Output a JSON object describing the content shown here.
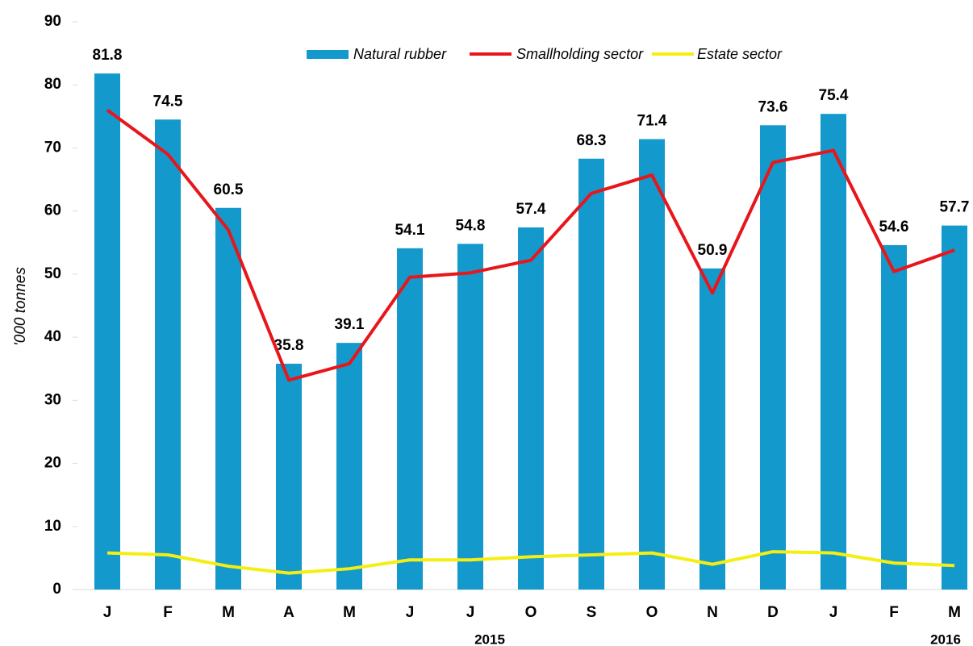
{
  "chart_data": {
    "type": "bar",
    "y_label": "'000 tonnes",
    "categories": [
      "J",
      "F",
      "M",
      "A",
      "M",
      "J",
      "J",
      "O",
      "S",
      "O",
      "N",
      "D",
      "J",
      "F",
      "M"
    ],
    "annotations": [
      "2015",
      "2016"
    ],
    "series": [
      {
        "name": "Natural rubber",
        "type": "bar",
        "color": "#1399cc",
        "values": [
          81.8,
          74.5,
          60.5,
          35.8,
          39.1,
          54.1,
          54.8,
          57.4,
          68.3,
          71.4,
          50.9,
          73.6,
          75.4,
          54.6,
          57.7
        ]
      },
      {
        "name": "Smallholding sector",
        "type": "line",
        "color": "#e8161b",
        "values": [
          76,
          69,
          57,
          33.2,
          35.8,
          49.5,
          50.2,
          52.2,
          62.8,
          65.7,
          47,
          67.7,
          69.6,
          50.4,
          53.8
        ]
      },
      {
        "name": "Estate sector",
        "type": "line",
        "color": "#f4ee12",
        "values": [
          5.8,
          5.5,
          3.7,
          2.6,
          3.3,
          4.7,
          4.7,
          5.2,
          5.5,
          5.8,
          4.0,
          6.0,
          5.8,
          4.2,
          3.8
        ]
      }
    ],
    "ylim": [
      0,
      90
    ],
    "yticks": [
      0,
      10,
      20,
      30,
      40,
      50,
      60,
      70,
      80,
      90
    ]
  }
}
